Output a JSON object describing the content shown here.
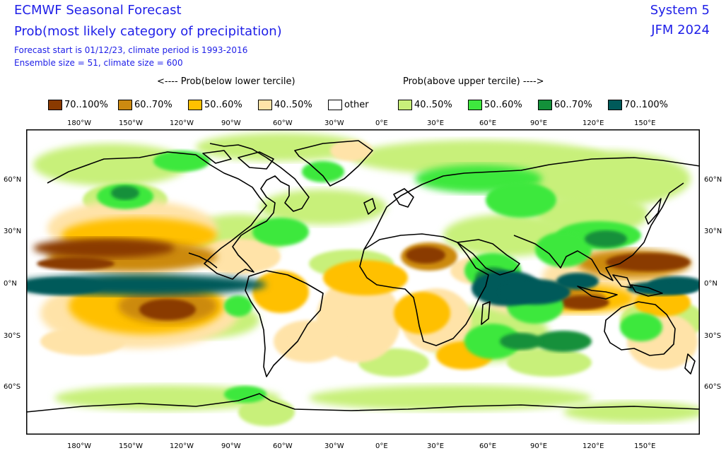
{
  "header": {
    "title": "ECMWF Seasonal Forecast",
    "subtitle": "Prob(most likely category of precipitation)",
    "forecast_info": "Forecast start is 01/12/23, climate period is 1993-2016",
    "ensemble_info": "Ensemble size = 51, climate size = 600",
    "system": "System 5",
    "period": "JFM 2024"
  },
  "legend": {
    "below_label": "<---- Prob(below lower tercile)",
    "above_label": "Prob(above upper tercile) ---->",
    "items": [
      {
        "label": "70..100%",
        "color": "#8a3a00"
      },
      {
        "label": "60..70%",
        "color": "#cc8a10"
      },
      {
        "label": "50..60%",
        "color": "#ffc000"
      },
      {
        "label": "40..50%",
        "color": "#ffe3a8"
      },
      {
        "label": "other",
        "color": "#ffffff"
      },
      {
        "label": "40..50%",
        "color": "#c8f07a"
      },
      {
        "label": "50..60%",
        "color": "#3ee83e"
      },
      {
        "label": "60..70%",
        "color": "#13903a"
      },
      {
        "label": "70..100%",
        "color": "#005a5a"
      }
    ]
  },
  "axes": {
    "lon_ticks": [
      "180°W",
      "150°W",
      "120°W",
      "90°W",
      "60°W",
      "30°W",
      "0°E",
      "30°E",
      "60°E",
      "90°E",
      "120°E",
      "150°E"
    ],
    "lat_ticks": [
      "60°N",
      "30°N",
      "0°N",
      "30°S",
      "60°S"
    ]
  }
}
